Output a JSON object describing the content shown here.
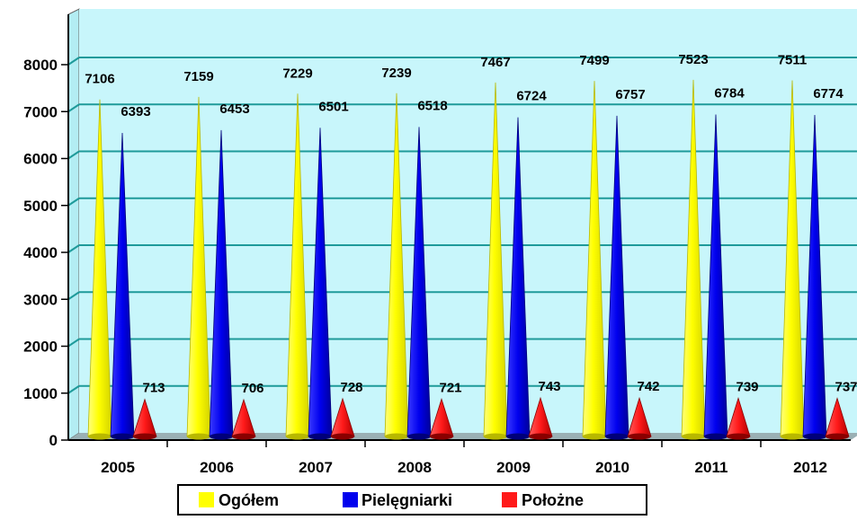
{
  "colors": {
    "plot_background": "#c8f6fb",
    "plot_wall_side": "#b3edf3",
    "plot_floor": "#9ab0b4",
    "gridline": "#1e9a9a",
    "ogolem": "#ffff00",
    "pielegniarki": "#0000ee",
    "polozne": "#ff1a1a"
  },
  "legend": {
    "items": [
      {
        "label": "Ogółem",
        "icon": "yellow-square-icon"
      },
      {
        "label": "Pielęgniarki",
        "icon": "blue-square-icon"
      },
      {
        "label": "Położne",
        "icon": "red-square-icon"
      }
    ]
  },
  "chart_data": {
    "type": "bar",
    "shape": "3d-cone",
    "title": "",
    "xlabel": "",
    "ylabel": "",
    "ylim": [
      0,
      8000
    ],
    "yticks": [
      "0",
      "1000",
      "2000",
      "3000",
      "4000",
      "5000",
      "6000",
      "7000",
      "8000"
    ],
    "grid": true,
    "legend_position": "bottom",
    "categories": [
      "2005",
      "2006",
      "2007",
      "2008",
      "2009",
      "2010",
      "2011",
      "2012"
    ],
    "series": [
      {
        "name": "Ogółem",
        "values": [
          7106,
          7159,
          7229,
          7239,
          7467,
          7499,
          7523,
          7511
        ]
      },
      {
        "name": "Pielęgniarki",
        "values": [
          6393,
          6453,
          6501,
          6518,
          6724,
          6757,
          6784,
          6774
        ]
      },
      {
        "name": "Położne",
        "values": [
          713,
          706,
          728,
          721,
          743,
          742,
          739,
          737
        ]
      }
    ]
  }
}
